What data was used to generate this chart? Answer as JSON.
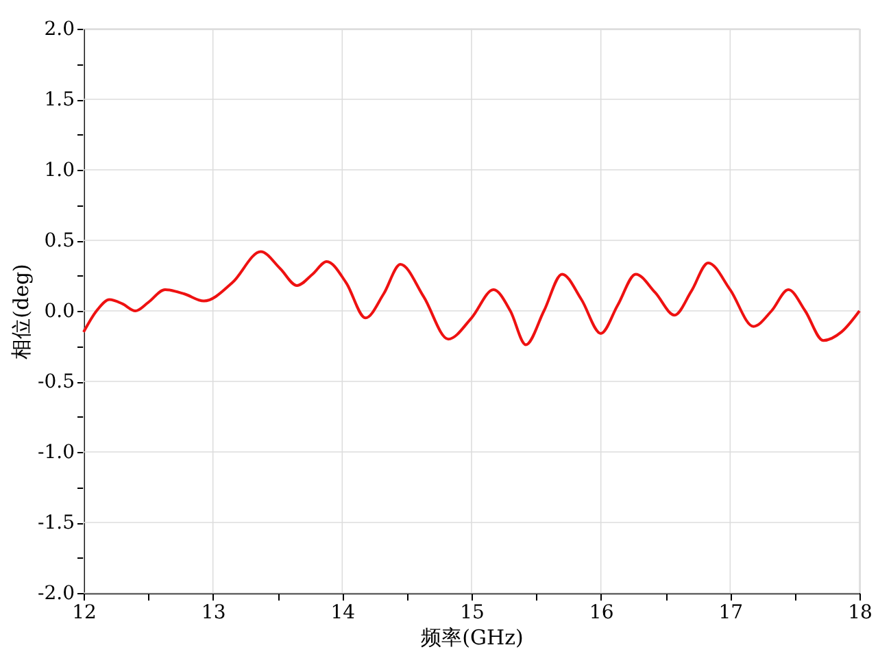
{
  "chart_data": {
    "type": "line",
    "xlabel": "频率(GHz)",
    "ylabel": "相位(deg)",
    "x": [
      12.0,
      12.1,
      12.2,
      12.3,
      12.4,
      12.5,
      12.63,
      12.78,
      12.93,
      13.15,
      13.37,
      13.52,
      13.65,
      13.77,
      13.88,
      14.03,
      14.18,
      14.32,
      14.45,
      14.63,
      14.82,
      15.0,
      15.17,
      15.3,
      15.42,
      15.56,
      15.7,
      15.85,
      16.0,
      16.13,
      16.27,
      16.42,
      16.57,
      16.7,
      16.83,
      17.0,
      17.18,
      17.32,
      17.45,
      17.58,
      17.72,
      17.86,
      18.0
    ],
    "series": [
      {
        "color": "#ee1111",
        "values": [
          -0.15,
          0.0,
          0.08,
          0.05,
          0.0,
          0.06,
          0.15,
          0.12,
          0.07,
          0.2,
          0.42,
          0.3,
          0.18,
          0.26,
          0.35,
          0.2,
          -0.05,
          0.12,
          0.33,
          0.1,
          -0.2,
          -0.05,
          0.15,
          0.0,
          -0.24,
          0.0,
          0.26,
          0.08,
          -0.16,
          0.04,
          0.26,
          0.13,
          -0.03,
          0.14,
          0.34,
          0.15,
          -0.11,
          0.0,
          0.15,
          0.0,
          -0.21,
          -0.15,
          0.0
        ]
      }
    ],
    "xlim": [
      12,
      18
    ],
    "xticks": [
      12,
      {
        "value": 12.5,
        "label": null
      },
      13,
      {
        "value": 13.5,
        "label": null
      },
      14,
      {
        "value": 14.5,
        "label": null
      },
      15,
      {
        "value": 15.5,
        "label": null
      },
      16,
      {
        "value": 16.5,
        "label": null
      },
      17,
      {
        "value": 17.5,
        "label": null
      },
      18
    ],
    "ylim": [
      -2.0,
      2.0
    ],
    "yticks": [
      {
        "value": -2.0,
        "label": "-2.0"
      },
      {
        "value": -1.75,
        "label": null
      },
      {
        "value": -1.5,
        "label": "-1.5"
      },
      {
        "value": -1.25,
        "label": null
      },
      {
        "value": -1.0,
        "label": "-1.0"
      },
      {
        "value": -0.75,
        "label": null
      },
      {
        "value": -0.5,
        "label": "-0.5"
      },
      {
        "value": -0.25,
        "label": null
      },
      {
        "value": 0.0,
        "label": "0.0"
      },
      {
        "value": 0.25,
        "label": null
      },
      {
        "value": 0.5,
        "label": "0.5"
      },
      {
        "value": 0.75,
        "label": null
      },
      {
        "value": 1.0,
        "label": "1.0"
      },
      {
        "value": 1.25,
        "label": null
      },
      {
        "value": 1.5,
        "label": "1.5"
      },
      {
        "value": 1.75,
        "label": null
      },
      {
        "value": 2.0,
        "label": "2.0"
      }
    ],
    "grid": true,
    "line_style": "solid",
    "marker": "none"
  }
}
